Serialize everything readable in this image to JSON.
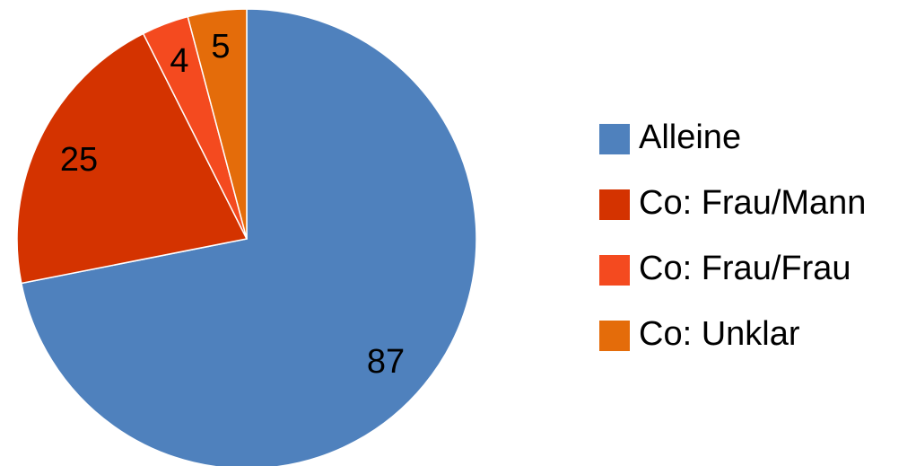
{
  "chart_data": {
    "type": "pie",
    "title": "",
    "start": "top",
    "direction": "clockwise",
    "slices": [
      {
        "label": "Alleine",
        "value": 87,
        "color": "#4f81bd"
      },
      {
        "label": "Co: Frau/Mann",
        "value": 25,
        "color": "#d43300"
      },
      {
        "label": "Co: Frau/Frau",
        "value": 4,
        "color": "#f44a1f"
      },
      {
        "label": "Co: Unklar",
        "value": 5,
        "color": "#e46c0a"
      }
    ],
    "data_labels": true,
    "legend": {
      "position": "right"
    }
  }
}
